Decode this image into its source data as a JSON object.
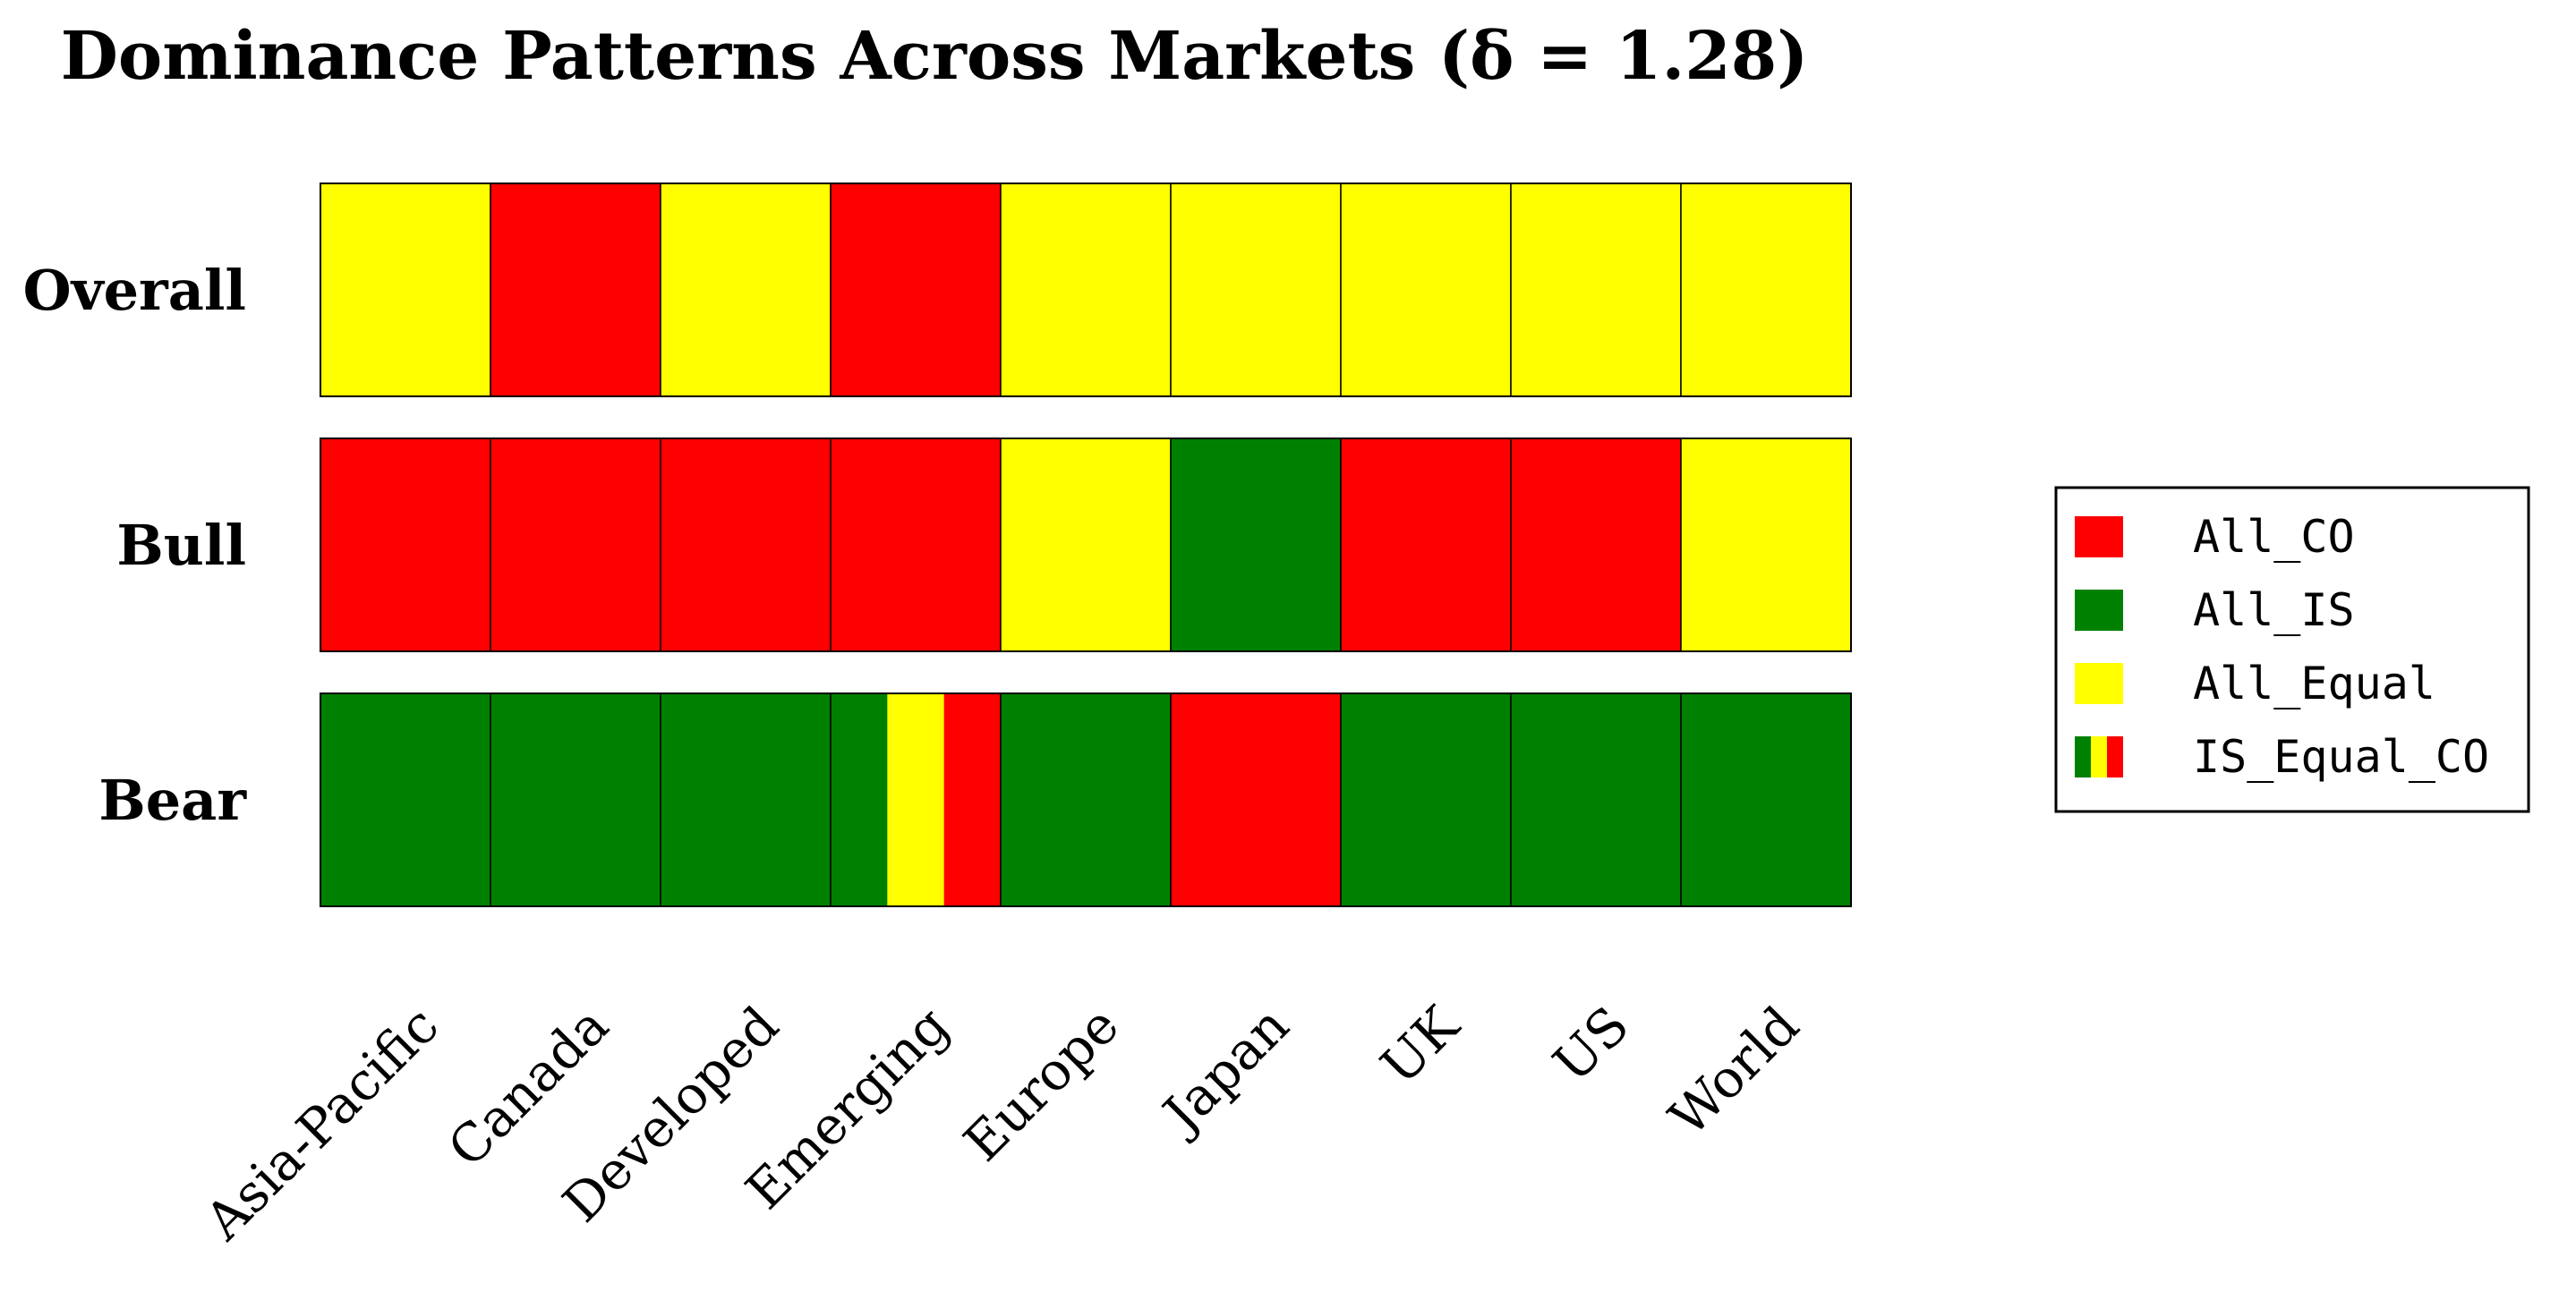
{
  "chart_data": {
    "type": "heatmap",
    "title": "Dominance Patterns Across Markets (δ = 1.28)",
    "columns": [
      "Asia-Pacific",
      "Canada",
      "Developed",
      "Emerging",
      "Europe",
      "Japan",
      "UK",
      "US",
      "World"
    ],
    "rows": [
      "Overall",
      "Bull",
      "Bear"
    ],
    "values": [
      [
        "All_Equal",
        "All_CO",
        "All_Equal",
        "All_CO",
        "All_Equal",
        "All_Equal",
        "All_Equal",
        "All_Equal",
        "All_Equal"
      ],
      [
        "All_CO",
        "All_CO",
        "All_CO",
        "All_CO",
        "All_Equal",
        "All_IS",
        "All_CO",
        "All_CO",
        "All_Equal"
      ],
      [
        "All_IS",
        "All_IS",
        "All_IS",
        "IS_Equal_CO",
        "All_IS",
        "All_CO",
        "All_IS",
        "All_IS",
        "All_IS"
      ]
    ],
    "legend": {
      "placement": "right",
      "entries": [
        {
          "key": "All_CO",
          "label": "All_CO",
          "colors": [
            "#ff0000"
          ]
        },
        {
          "key": "All_IS",
          "label": "All_IS",
          "colors": [
            "#008000"
          ]
        },
        {
          "key": "All_Equal",
          "label": "All_Equal",
          "colors": [
            "#ffff00"
          ]
        },
        {
          "key": "IS_Equal_CO",
          "label": "IS_Equal_CO",
          "colors": [
            "#008000",
            "#ffff00",
            "#ff0000"
          ]
        }
      ]
    }
  }
}
